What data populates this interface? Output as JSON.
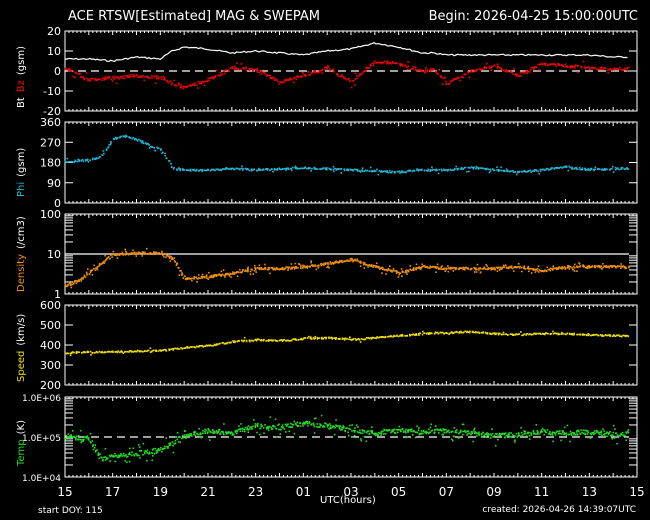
{
  "header": {
    "title": "ACE RTSW[Estimated] MAG & SWEPAM",
    "begin": "Begin: 2026-04-25 15:00:00UTC"
  },
  "footer": {
    "start_doy": "start DOY: 115",
    "created": "created: 2026-04-26 14:39:07UTC",
    "xlabel": "UTC(hours)"
  },
  "colors": {
    "bt": "#ffffff",
    "bz": "#ff0000",
    "phi": "#22b8d8",
    "density": "#f0900a",
    "speed": "#f0e000",
    "temp": "#22dd22",
    "axes": "#ffffff"
  },
  "panel_labels": {
    "mag": [
      {
        "text": "Bt",
        "color": "#ffffff"
      },
      {
        "text": "Bz",
        "color": "#ff0000"
      },
      {
        "text": "(gsm)",
        "color": "#ffffff"
      }
    ],
    "phi": [
      {
        "text": "Phi",
        "color": "#22b8d8"
      },
      {
        "text": "(gsm)",
        "color": "#ffffff"
      }
    ],
    "density": [
      {
        "text": "Density",
        "color": "#f0900a"
      },
      {
        "text": "(/cm3)",
        "color": "#ffffff"
      }
    ],
    "speed": [
      {
        "text": "Speed",
        "color": "#f0e000"
      },
      {
        "text": "(km/s)",
        "color": "#ffffff"
      }
    ],
    "temp": [
      {
        "text": "Temp",
        "color": "#22dd22"
      },
      {
        "text": "(K)",
        "color": "#ffffff"
      }
    ]
  },
  "chart_data": [
    {
      "type": "line",
      "title": "Bt / Bz (gsm)",
      "ylabel": "Bt Bz (gsm)",
      "ylim": [
        -20,
        20
      ],
      "yticks": [
        20,
        10,
        0,
        -10,
        -20
      ],
      "reference_line": {
        "y": 0,
        "style": "dashed"
      },
      "x_hours_from_start": [
        0,
        1,
        2,
        3,
        4,
        4.5,
        5,
        6,
        7,
        8,
        9,
        10,
        11,
        12,
        13,
        14,
        15,
        15.5,
        16,
        17,
        18,
        19,
        20,
        21,
        22,
        23,
        24
      ],
      "series": [
        {
          "name": "Bt",
          "color": "#ffffff",
          "values": [
            6,
            6,
            5,
            7,
            6,
            10,
            12,
            11,
            9,
            10,
            9,
            8,
            10,
            11,
            14,
            12,
            9,
            9,
            8,
            8,
            8,
            8,
            8,
            8,
            8,
            7,
            7
          ]
        },
        {
          "name": "Bz",
          "color": "#ff0000",
          "values": [
            2,
            -4,
            -3,
            -2,
            -3,
            -6,
            -8,
            -4,
            2,
            1,
            -5,
            -2,
            2,
            -5,
            5,
            4,
            0,
            1,
            -6,
            0,
            3,
            -2,
            4,
            3,
            2,
            1,
            2
          ]
        }
      ]
    },
    {
      "type": "scatter",
      "title": "Phi (gsm)",
      "ylabel": "Phi (gsm)",
      "ylim": [
        0,
        360
      ],
      "yticks": [
        360,
        270,
        180,
        90,
        0
      ],
      "x_hours_from_start": [
        0,
        1,
        1.5,
        2,
        2.5,
        3,
        3.5,
        4,
        4.5,
        5,
        6,
        7,
        8,
        9,
        10,
        11,
        12,
        13,
        14,
        15,
        16,
        17,
        18,
        19,
        20,
        21,
        22,
        23,
        24
      ],
      "series": [
        {
          "name": "Phi",
          "color": "#22b8d8",
          "values": [
            185,
            195,
            210,
            290,
            300,
            285,
            260,
            240,
            160,
            150,
            150,
            155,
            150,
            155,
            160,
            155,
            150,
            145,
            140,
            150,
            150,
            160,
            150,
            140,
            150,
            165,
            150,
            155,
            160
          ]
        }
      ]
    },
    {
      "type": "scatter",
      "title": "Density (/cm3)",
      "ylabel": "Density (/cm3)",
      "yscale": "log",
      "ylim": [
        1,
        100
      ],
      "yticks": [
        100,
        10,
        1
      ],
      "reference_line": {
        "y": 10,
        "style": "solid"
      },
      "x_hours_from_start": [
        0,
        0.5,
        1,
        1.5,
        2,
        3,
        4,
        4.5,
        5,
        6,
        7,
        8,
        9,
        10,
        11,
        12,
        13,
        14,
        15,
        16,
        17,
        18,
        19,
        20,
        21,
        22,
        23,
        24
      ],
      "series": [
        {
          "name": "Density",
          "color": "#f0900a",
          "values": [
            1.7,
            2.2,
            3.5,
            6,
            10,
            11,
            11,
            8,
            2.5,
            2.8,
            3.5,
            4.5,
            4.5,
            5,
            6,
            7.5,
            5,
            3.5,
            5,
            4.5,
            4.5,
            4.5,
            5,
            4,
            5,
            5,
            5,
            4.8
          ]
        }
      ]
    },
    {
      "type": "scatter",
      "title": "Speed (km/s)",
      "ylabel": "Speed (km/s)",
      "ylim": [
        200,
        600
      ],
      "yticks": [
        600,
        500,
        400,
        300,
        200
      ],
      "x_hours_from_start": [
        0,
        2,
        4,
        5,
        6,
        7,
        8,
        9,
        10,
        11,
        12,
        13,
        14,
        15,
        16,
        17,
        18,
        19,
        20,
        21,
        22,
        23,
        24
      ],
      "series": [
        {
          "name": "Speed",
          "color": "#f0e000",
          "values": [
            365,
            370,
            375,
            390,
            400,
            420,
            430,
            425,
            435,
            440,
            430,
            440,
            450,
            460,
            465,
            470,
            460,
            455,
            460,
            460,
            455,
            450,
            450
          ]
        }
      ]
    },
    {
      "type": "scatter",
      "title": "Temp (K)",
      "ylabel": "Temp (K)",
      "yscale": "log",
      "ylim": [
        10000,
        1000000
      ],
      "yticks": [
        "1.0E+06",
        "1.0E+05",
        "1.0E+04"
      ],
      "reference_line": {
        "y": 100000,
        "style": "dashed"
      },
      "x_hours_from_start": [
        0,
        1,
        1.5,
        2,
        3,
        4,
        5,
        6,
        7,
        8,
        9,
        10,
        11,
        12,
        13,
        14,
        15,
        16,
        17,
        18,
        19,
        20,
        21,
        22,
        23,
        24
      ],
      "series": [
        {
          "name": "Temp",
          "color": "#22dd22",
          "values": [
            110000,
            90000,
            30000,
            35000,
            40000,
            50000,
            110000,
            150000,
            130000,
            200000,
            180000,
            230000,
            200000,
            150000,
            130000,
            150000,
            140000,
            150000,
            130000,
            110000,
            120000,
            140000,
            130000,
            140000,
            120000,
            130000
          ]
        }
      ]
    }
  ],
  "x_axis": {
    "label": "UTC(hours)",
    "tick_labels": [
      "15",
      "17",
      "19",
      "21",
      "23",
      "01",
      "03",
      "05",
      "07",
      "09",
      "11",
      "13",
      "15"
    ],
    "span_hours": 24
  }
}
